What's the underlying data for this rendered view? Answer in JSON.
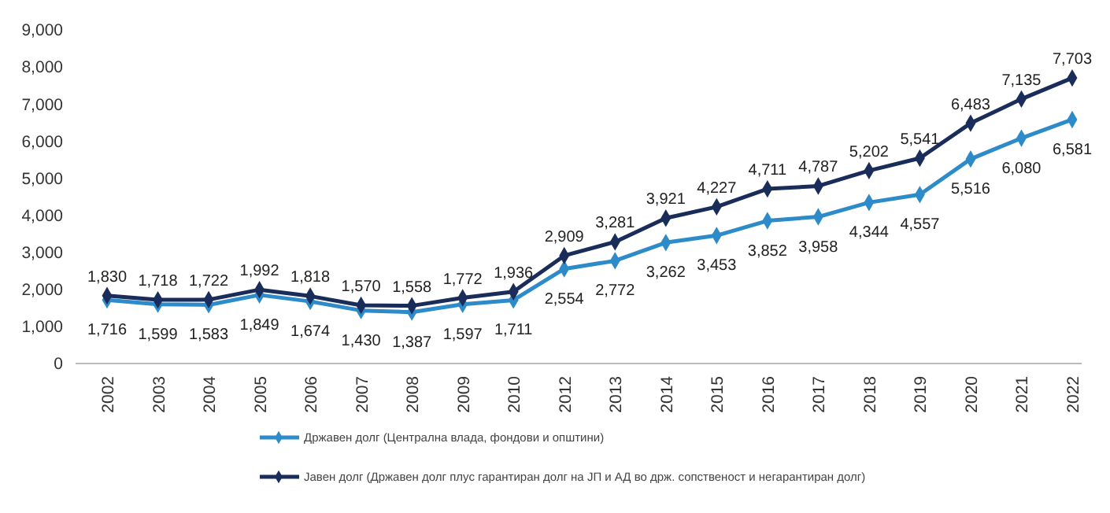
{
  "chart_data": {
    "type": "line",
    "categories": [
      "2002",
      "2003",
      "2004",
      "2005",
      "2006",
      "2007",
      "2008",
      "2009",
      "2010",
      "2012",
      "2013",
      "2014",
      "2015",
      "2016",
      "2017",
      "2018",
      "2019",
      "2020",
      "2021",
      "2022"
    ],
    "series": [
      {
        "name": "Државен долг (Централна влада, фондови и општини)",
        "color": "#2e8bc9",
        "values": [
          1716,
          1599,
          1583,
          1849,
          1674,
          1430,
          1387,
          1597,
          1711,
          2554,
          2772,
          3262,
          3453,
          3852,
          3958,
          4344,
          4557,
          5516,
          6080,
          6581
        ],
        "value_labels": [
          "1,716",
          "1,599",
          "1,583",
          "1,849",
          "1,674",
          "1,430",
          "1,387",
          "1,597",
          "1,711",
          "2,554",
          "2,772",
          "3,262",
          "3,453",
          "3,852",
          "3,958",
          "4,344",
          "4,557",
          "5,516",
          "6,080",
          "6,581"
        ]
      },
      {
        "name": "Јавен долг (Државен долг плус гарантиран долг на ЈП и АД во држ. сопственост и негарантиран долг)",
        "color": "#1a2d5a",
        "values": [
          1830,
          1718,
          1722,
          1992,
          1818,
          1570,
          1558,
          1772,
          1936,
          2909,
          3281,
          3921,
          4227,
          4711,
          4787,
          5202,
          5541,
          6483,
          7135,
          7703
        ],
        "value_labels": [
          "1,830",
          "1,718",
          "1,722",
          "1,992",
          "1,818",
          "1,570",
          "1,558",
          "1,772",
          "1,936",
          "2,909",
          "3,281",
          "3,921",
          "4,227",
          "4,711",
          "4,787",
          "5,202",
          "5,541",
          "6,483",
          "7,135",
          "7,703"
        ]
      }
    ],
    "ylim": [
      0,
      9000
    ],
    "yticks": [
      {
        "value": 0,
        "label": "0"
      },
      {
        "value": 1000,
        "label": "1,000"
      },
      {
        "value": 2000,
        "label": "2,000"
      },
      {
        "value": 3000,
        "label": "3,000"
      },
      {
        "value": 4000,
        "label": "4,000"
      },
      {
        "value": 5000,
        "label": "5,000"
      },
      {
        "value": 6000,
        "label": "6,000"
      },
      {
        "value": 7000,
        "label": "7,000"
      },
      {
        "value": 8000,
        "label": "8,000"
      },
      {
        "value": 9000,
        "label": "9,000"
      }
    ],
    "marker": "diamond",
    "line_style": "solid",
    "legend": "bottom"
  }
}
